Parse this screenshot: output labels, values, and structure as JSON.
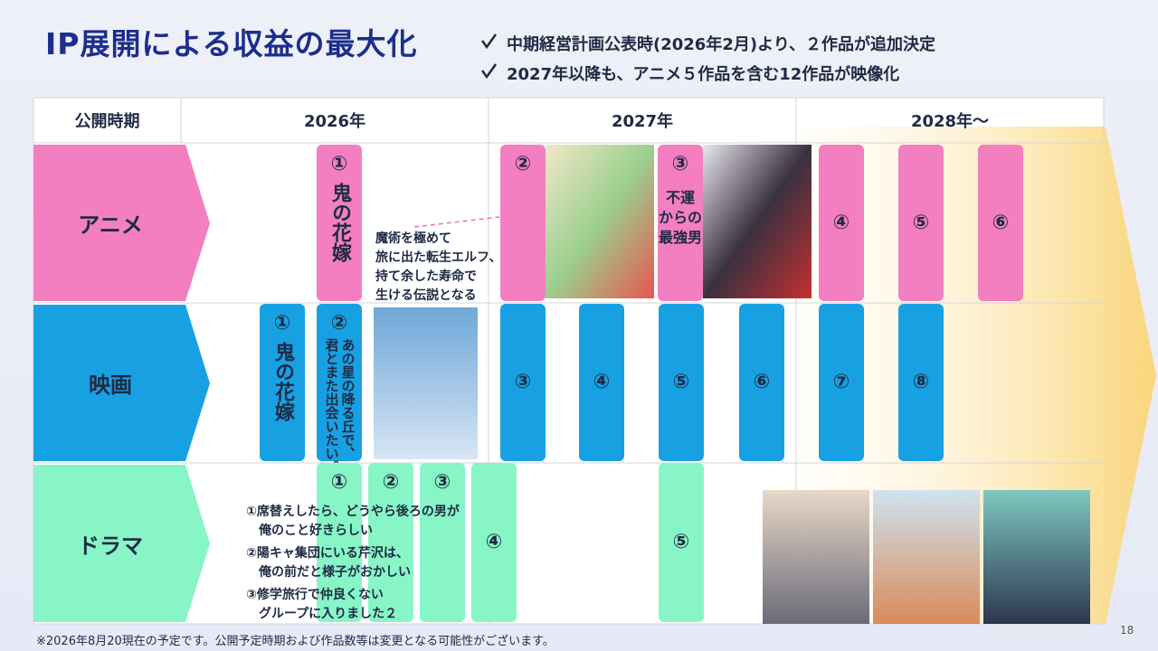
{
  "header": {
    "title": "IP展開による収益の最大化",
    "points": [
      "中期経営計画公表時(2026年2月)より、２作品が追加決定",
      "2027年以降も、アニメ５作品を含む12作品が映像化"
    ]
  },
  "table": {
    "columns": [
      "公開時期",
      "2026年",
      "2027年",
      "2028年～"
    ],
    "rows": [
      {
        "label": "アニメ",
        "items": [
          {
            "num": "①",
            "title_lines": [
              "鬼",
              "の",
              "花",
              "嫁"
            ]
          },
          {
            "num": "②"
          },
          {
            "num": "③",
            "title_lines": [
              "不運",
              "からの",
              "最強男"
            ]
          },
          {
            "num": "④"
          },
          {
            "num": "⑤"
          },
          {
            "num": "⑥"
          }
        ]
      },
      {
        "label": "映画",
        "items": [
          {
            "num": "①",
            "title_lines": [
              "鬼",
              "の",
              "花",
              "嫁"
            ]
          },
          {
            "num": "②",
            "title_lines": [
              "あの星の降る丘で、",
              "君とまた出会いたい。"
            ]
          },
          {
            "num": "③"
          },
          {
            "num": "④"
          },
          {
            "num": "⑤"
          },
          {
            "num": "⑥"
          },
          {
            "num": "⑦"
          },
          {
            "num": "⑧"
          }
        ]
      },
      {
        "label": "ドラマ",
        "items": [
          {
            "num": "①"
          },
          {
            "num": "②"
          },
          {
            "num": "③"
          },
          {
            "num": "④"
          },
          {
            "num": "⑤"
          }
        ]
      }
    ]
  },
  "anime_annotation": [
    "魔術を極めて",
    "旅に出た転生エルフ、",
    "持て余した寿命で",
    "生ける伝説となる"
  ],
  "drama_titles": [
    [
      "①席替えしたら、どうやら後ろの男が",
      "俺のこと好きらしい"
    ],
    [
      "②陽キャ集団にいる芹沢は、",
      "俺の前だと様子がおかしい"
    ],
    [
      "③修学旅行で仲良くない",
      "グループに入りました２"
    ]
  ],
  "footnote": "※2026年8月20現在の予定です。公開予定時期および作品数等は変更となる可能性がございます。",
  "page_number": "18"
}
